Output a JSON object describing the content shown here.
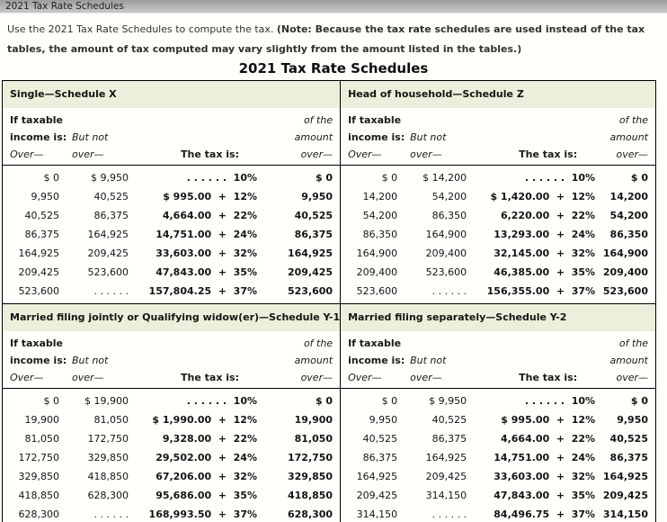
{
  "window": {
    "title": "2021 Tax Rate Schedules"
  },
  "intro": {
    "regular": "Use the 2021 Tax Rate Schedules to compute the tax. ",
    "note": "(Note: Because the tax rate schedules are used instead of the tax tables, the amount of tax computed may vary slightly from the amount listed in the tables.)"
  },
  "title": "2021 Tax Rate Schedules",
  "headers": {
    "if_taxable": "If taxable",
    "income_is": "income is:",
    "over_dash": "Over—",
    "but_not": "But not",
    "but_not_over": "over—",
    "the_tax_is": "The tax is:",
    "of_the": "of the",
    "amount": "amount",
    "amount_over": "over—"
  },
  "schedules": [
    {
      "name": "Single—Schedule X",
      "rows": [
        [
          "$ 0",
          "$ 9,950",
          ". . . . . .  10%",
          "$ 0"
        ],
        [
          "9,950",
          "40,525",
          "$ 995.00  +  12%",
          "9,950"
        ],
        [
          "40,525",
          "86,375",
          "4,664.00  +  22%",
          "40,525"
        ],
        [
          "86,375",
          "164,925",
          "14,751.00  +  24%",
          "86,375"
        ],
        [
          "164,925",
          "209,425",
          "33,603.00  +  32%",
          "164,925"
        ],
        [
          "209,425",
          "523,600",
          "47,843.00  +  35%",
          "209,425"
        ],
        [
          "523,600",
          ". . . . . .",
          "157,804.25  +  37%",
          "523,600"
        ]
      ]
    },
    {
      "name": "Head of household—Schedule Z",
      "rows": [
        [
          "$ 0",
          "$ 14,200",
          ". . . . . .  10%",
          "$ 0"
        ],
        [
          "14,200",
          "54,200",
          "$ 1,420.00  +  12%",
          "14,200"
        ],
        [
          "54,200",
          "86,350",
          "6,220.00  +  22%",
          "54,200"
        ],
        [
          "86,350",
          "164,900",
          "13,293.00  +  24%",
          "86,350"
        ],
        [
          "164,900",
          "209,400",
          "32,145.00  +  32%",
          "164,900"
        ],
        [
          "209,400",
          "523,600",
          "46,385.00  +  35%",
          "209,400"
        ],
        [
          "523,600",
          ". . . . . .",
          "156,355.00  +  37%",
          "523,600"
        ]
      ]
    },
    {
      "name": "Married filing jointly or Qualifying widow(er)—Schedule Y-1",
      "rows": [
        [
          "$ 0",
          "$ 19,900",
          ". . . . . .  10%",
          "$ 0"
        ],
        [
          "19,900",
          "81,050",
          "$ 1,990.00  +  12%",
          "19,900"
        ],
        [
          "81,050",
          "172,750",
          "9,328.00  +  22%",
          "81,050"
        ],
        [
          "172,750",
          "329,850",
          "29,502.00  +  24%",
          "172,750"
        ],
        [
          "329,850",
          "418,850",
          "67,206.00  +  32%",
          "329,850"
        ],
        [
          "418,850",
          "628,300",
          "95,686.00  +  35%",
          "418,850"
        ],
        [
          "628,300",
          ". . . . . .",
          "168,993.50  +  37%",
          "628,300"
        ]
      ]
    },
    {
      "name": "Married filing separately—Schedule Y-2",
      "rows": [
        [
          "$ 0",
          "$ 9,950",
          ". . . . . .  10%",
          "$ 0"
        ],
        [
          "9,950",
          "40,525",
          "$ 995.00  +  12%",
          "9,950"
        ],
        [
          "40,525",
          "86,375",
          "4,664.00  +  22%",
          "40,525"
        ],
        [
          "86,375",
          "164,925",
          "14,751.00  +  24%",
          "86,375"
        ],
        [
          "164,925",
          "209,425",
          "33,603.00  +  32%",
          "164,925"
        ],
        [
          "209,425",
          "314,150",
          "47,843.00  +  35%",
          "209,425"
        ],
        [
          "314,150",
          ". . . . . .",
          "84,496.75  +  37%",
          "314,150"
        ]
      ]
    }
  ]
}
